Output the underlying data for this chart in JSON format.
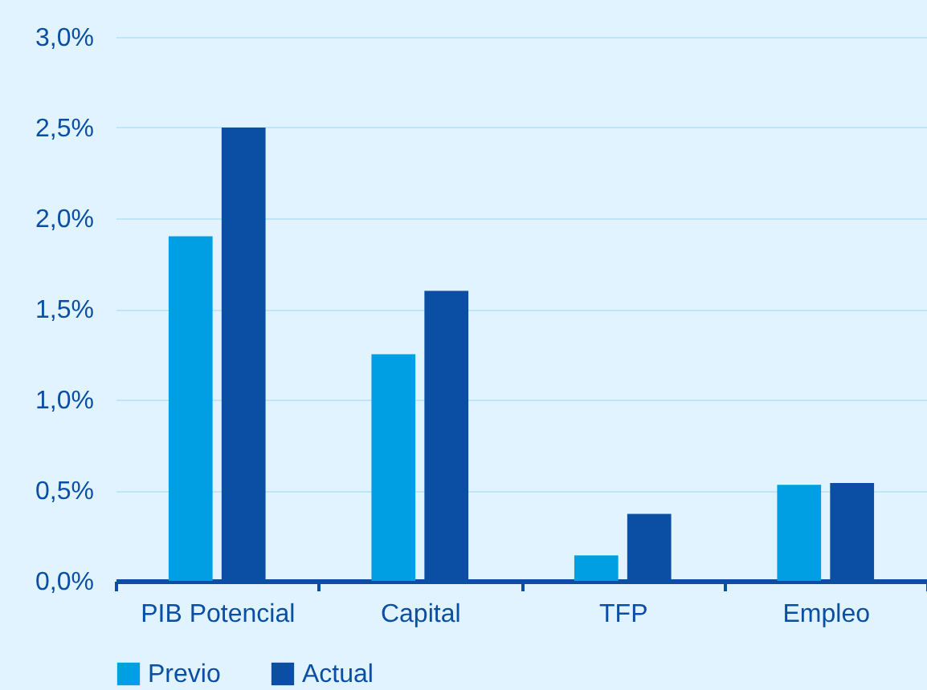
{
  "chart_data": {
    "type": "bar",
    "categories": [
      "PIB Potencial",
      "Capital",
      "TFP",
      "Empleo"
    ],
    "series": [
      {
        "name": "Previo",
        "color": "#009fe3",
        "values": [
          1.9,
          1.25,
          0.14,
          0.53
        ]
      },
      {
        "name": "Actual",
        "color": "#0a4fa3",
        "values": [
          2.5,
          1.6,
          0.37,
          0.54
        ]
      }
    ],
    "ylim": [
      0,
      3
    ],
    "yticks": [
      {
        "value": 0,
        "label": "0,0%"
      },
      {
        "value": 0.5,
        "label": "0,5%"
      },
      {
        "value": 1,
        "label": "1,0%"
      },
      {
        "value": 1.5,
        "label": "1,5%"
      },
      {
        "value": 2,
        "label": "2,0%"
      },
      {
        "value": 2.5,
        "label": "2,5%"
      },
      {
        "value": 3,
        "label": "3,0%"
      }
    ],
    "grid": "y",
    "legend": "bottom"
  }
}
